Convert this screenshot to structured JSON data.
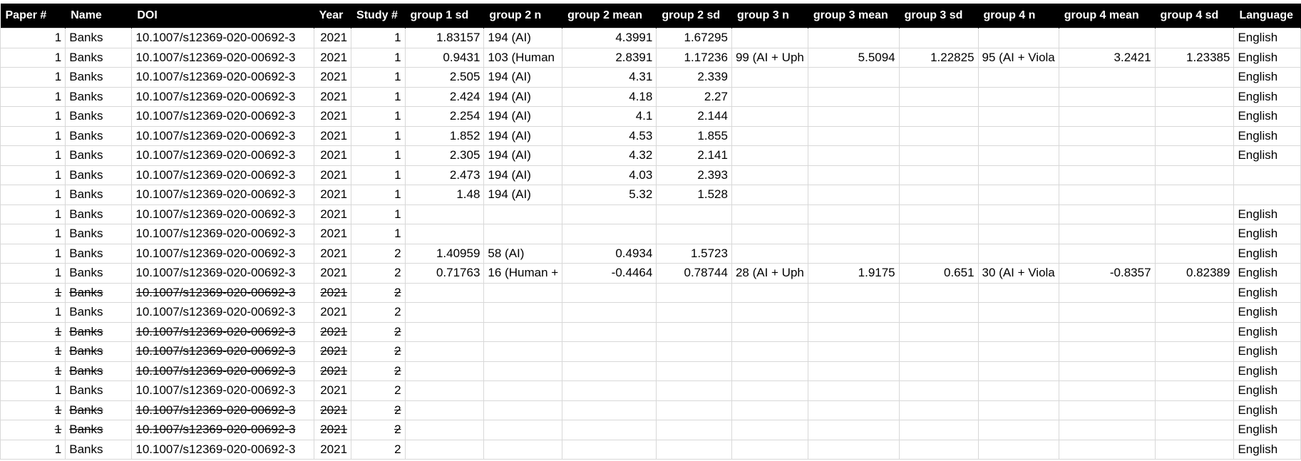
{
  "columns": [
    {
      "label": "Paper #",
      "key": "paper",
      "align": "num"
    },
    {
      "label": "Name",
      "key": "name",
      "align": "txt"
    },
    {
      "label": "DOI",
      "key": "doi",
      "align": "txt"
    },
    {
      "label": "Year",
      "key": "year",
      "align": "num"
    },
    {
      "label": "Study #",
      "key": "study",
      "align": "num"
    },
    {
      "label": "group 1 sd",
      "key": "g1sd",
      "align": "num"
    },
    {
      "label": "group 2 n",
      "key": "g2n",
      "align": "txt"
    },
    {
      "label": "group 2 mean",
      "key": "g2mean",
      "align": "num"
    },
    {
      "label": "group 2 sd",
      "key": "g2sd",
      "align": "num"
    },
    {
      "label": "group 3 n",
      "key": "g3n",
      "align": "txt"
    },
    {
      "label": "group 3 mean",
      "key": "g3mean",
      "align": "num"
    },
    {
      "label": "group 3 sd",
      "key": "g3sd",
      "align": "num"
    },
    {
      "label": "group 4 n",
      "key": "g4n",
      "align": "txt"
    },
    {
      "label": "group 4 mean",
      "key": "g4mean",
      "align": "num"
    },
    {
      "label": "group 4 sd",
      "key": "g4sd",
      "align": "num"
    },
    {
      "label": "Language",
      "key": "lang",
      "align": "txt"
    }
  ],
  "rows": [
    {
      "struck": false,
      "paper": "1",
      "name": "Banks",
      "doi": "10.1007/s12369-020-00692-3",
      "year": "2021",
      "study": "1",
      "g1sd": "1.83157",
      "g2n": "194 (AI)",
      "g2mean": "4.3991",
      "g2sd": "1.67295",
      "g3n": "",
      "g3mean": "",
      "g3sd": "",
      "g4n": "",
      "g4mean": "",
      "g4sd": "",
      "lang": "English"
    },
    {
      "struck": false,
      "paper": "1",
      "name": "Banks",
      "doi": "10.1007/s12369-020-00692-3",
      "year": "2021",
      "study": "1",
      "g1sd": "0.9431",
      "g2n": "103 (Human",
      "g2mean": "2.8391",
      "g2sd": "1.17236",
      "g3n": "99 (AI + Uph",
      "g3mean": "5.5094",
      "g3sd": "1.22825",
      "g4n": "95 (AI + Viola",
      "g4mean": "3.2421",
      "g4sd": "1.23385",
      "lang": "English"
    },
    {
      "struck": false,
      "paper": "1",
      "name": "Banks",
      "doi": "10.1007/s12369-020-00692-3",
      "year": "2021",
      "study": "1",
      "g1sd": "2.505",
      "g2n": "194 (AI)",
      "g2mean": "4.31",
      "g2sd": "2.339",
      "g3n": "",
      "g3mean": "",
      "g3sd": "",
      "g4n": "",
      "g4mean": "",
      "g4sd": "",
      "lang": "English"
    },
    {
      "struck": false,
      "paper": "1",
      "name": "Banks",
      "doi": "10.1007/s12369-020-00692-3",
      "year": "2021",
      "study": "1",
      "g1sd": "2.424",
      "g2n": "194 (AI)",
      "g2mean": "4.18",
      "g2sd": "2.27",
      "g3n": "",
      "g3mean": "",
      "g3sd": "",
      "g4n": "",
      "g4mean": "",
      "g4sd": "",
      "lang": "English"
    },
    {
      "struck": false,
      "paper": "1",
      "name": "Banks",
      "doi": "10.1007/s12369-020-00692-3",
      "year": "2021",
      "study": "1",
      "g1sd": "2.254",
      "g2n": "194 (AI)",
      "g2mean": "4.1",
      "g2sd": "2.144",
      "g3n": "",
      "g3mean": "",
      "g3sd": "",
      "g4n": "",
      "g4mean": "",
      "g4sd": "",
      "lang": "English"
    },
    {
      "struck": false,
      "paper": "1",
      "name": "Banks",
      "doi": "10.1007/s12369-020-00692-3",
      "year": "2021",
      "study": "1",
      "g1sd": "1.852",
      "g2n": "194 (AI)",
      "g2mean": "4.53",
      "g2sd": "1.855",
      "g3n": "",
      "g3mean": "",
      "g3sd": "",
      "g4n": "",
      "g4mean": "",
      "g4sd": "",
      "lang": "English"
    },
    {
      "struck": false,
      "paper": "1",
      "name": "Banks",
      "doi": "10.1007/s12369-020-00692-3",
      "year": "2021",
      "study": "1",
      "g1sd": "2.305",
      "g2n": "194 (AI)",
      "g2mean": "4.32",
      "g2sd": "2.141",
      "g3n": "",
      "g3mean": "",
      "g3sd": "",
      "g4n": "",
      "g4mean": "",
      "g4sd": "",
      "lang": "English"
    },
    {
      "struck": false,
      "paper": "1",
      "name": "Banks",
      "doi": "10.1007/s12369-020-00692-3",
      "year": "2021",
      "study": "1",
      "g1sd": "2.473",
      "g2n": "194 (AI)",
      "g2mean": "4.03",
      "g2sd": "2.393",
      "g3n": "",
      "g3mean": "",
      "g3sd": "",
      "g4n": "",
      "g4mean": "",
      "g4sd": "",
      "lang": ""
    },
    {
      "struck": false,
      "paper": "1",
      "name": "Banks",
      "doi": "10.1007/s12369-020-00692-3",
      "year": "2021",
      "study": "1",
      "g1sd": "1.48",
      "g2n": "194 (AI)",
      "g2mean": "5.32",
      "g2sd": "1.528",
      "g3n": "",
      "g3mean": "",
      "g3sd": "",
      "g4n": "",
      "g4mean": "",
      "g4sd": "",
      "lang": ""
    },
    {
      "struck": false,
      "paper": "1",
      "name": "Banks",
      "doi": "10.1007/s12369-020-00692-3",
      "year": "2021",
      "study": "1",
      "g1sd": "",
      "g2n": "",
      "g2mean": "",
      "g2sd": "",
      "g3n": "",
      "g3mean": "",
      "g3sd": "",
      "g4n": "",
      "g4mean": "",
      "g4sd": "",
      "lang": "English"
    },
    {
      "struck": false,
      "paper": "1",
      "name": "Banks",
      "doi": "10.1007/s12369-020-00692-3",
      "year": "2021",
      "study": "1",
      "g1sd": "",
      "g2n": "",
      "g2mean": "",
      "g2sd": "",
      "g3n": "",
      "g3mean": "",
      "g3sd": "",
      "g4n": "",
      "g4mean": "",
      "g4sd": "",
      "lang": "English"
    },
    {
      "struck": false,
      "paper": "1",
      "name": "Banks",
      "doi": "10.1007/s12369-020-00692-3",
      "year": "2021",
      "study": "2",
      "g1sd": "1.40959",
      "g2n": "58 (AI)",
      "g2mean": "0.4934",
      "g2sd": "1.5723",
      "g3n": "",
      "g3mean": "",
      "g3sd": "",
      "g4n": "",
      "g4mean": "",
      "g4sd": "",
      "lang": "English"
    },
    {
      "struck": false,
      "paper": "1",
      "name": "Banks",
      "doi": "10.1007/s12369-020-00692-3",
      "year": "2021",
      "study": "2",
      "g1sd": "0.71763",
      "g2n": "16 (Human +",
      "g2mean": "-0.4464",
      "g2sd": "0.78744",
      "g3n": "28 (AI + Uph",
      "g3mean": "1.9175",
      "g3sd": "0.651",
      "g4n": "30 (AI + Viola",
      "g4mean": "-0.8357",
      "g4sd": "0.82389",
      "lang": "English"
    },
    {
      "struck": true,
      "paper": "1",
      "name": "Banks",
      "doi": "10.1007/s12369-020-00692-3",
      "year": "2021",
      "study": "2",
      "g1sd": "",
      "g2n": "",
      "g2mean": "",
      "g2sd": "",
      "g3n": "",
      "g3mean": "",
      "g3sd": "",
      "g4n": "",
      "g4mean": "",
      "g4sd": "",
      "lang": "English"
    },
    {
      "struck": false,
      "paper": "1",
      "name": "Banks",
      "doi": "10.1007/s12369-020-00692-3",
      "year": "2021",
      "study": "2",
      "g1sd": "",
      "g2n": "",
      "g2mean": "",
      "g2sd": "",
      "g3n": "",
      "g3mean": "",
      "g3sd": "",
      "g4n": "",
      "g4mean": "",
      "g4sd": "",
      "lang": "English"
    },
    {
      "struck": true,
      "paper": "1",
      "name": "Banks",
      "doi": "10.1007/s12369-020-00692-3",
      "year": "2021",
      "study": "2",
      "g1sd": "",
      "g2n": "",
      "g2mean": "",
      "g2sd": "",
      "g3n": "",
      "g3mean": "",
      "g3sd": "",
      "g4n": "",
      "g4mean": "",
      "g4sd": "",
      "lang": "English"
    },
    {
      "struck": true,
      "paper": "1",
      "name": "Banks",
      "doi": "10.1007/s12369-020-00692-3",
      "year": "2021",
      "study": "2",
      "g1sd": "",
      "g2n": "",
      "g2mean": "",
      "g2sd": "",
      "g3n": "",
      "g3mean": "",
      "g3sd": "",
      "g4n": "",
      "g4mean": "",
      "g4sd": "",
      "lang": "English"
    },
    {
      "struck": true,
      "paper": "1",
      "name": "Banks",
      "doi": "10.1007/s12369-020-00692-3",
      "year": "2021",
      "study": "2",
      "g1sd": "",
      "g2n": "",
      "g2mean": "",
      "g2sd": "",
      "g3n": "",
      "g3mean": "",
      "g3sd": "",
      "g4n": "",
      "g4mean": "",
      "g4sd": "",
      "lang": "English"
    },
    {
      "struck": false,
      "paper": "1",
      "name": "Banks",
      "doi": "10.1007/s12369-020-00692-3",
      "year": "2021",
      "study": "2",
      "g1sd": "",
      "g2n": "",
      "g2mean": "",
      "g2sd": "",
      "g3n": "",
      "g3mean": "",
      "g3sd": "",
      "g4n": "",
      "g4mean": "",
      "g4sd": "",
      "lang": "English"
    },
    {
      "struck": true,
      "paper": "1",
      "name": "Banks",
      "doi": "10.1007/s12369-020-00692-3",
      "year": "2021",
      "study": "2",
      "g1sd": "",
      "g2n": "",
      "g2mean": "",
      "g2sd": "",
      "g3n": "",
      "g3mean": "",
      "g3sd": "",
      "g4n": "",
      "g4mean": "",
      "g4sd": "",
      "lang": "English"
    },
    {
      "struck": true,
      "paper": "1",
      "name": "Banks",
      "doi": "10.1007/s12369-020-00692-3",
      "year": "2021",
      "study": "2",
      "g1sd": "",
      "g2n": "",
      "g2mean": "",
      "g2sd": "",
      "g3n": "",
      "g3mean": "",
      "g3sd": "",
      "g4n": "",
      "g4mean": "",
      "g4sd": "",
      "lang": "English"
    },
    {
      "struck": false,
      "paper": "1",
      "name": "Banks",
      "doi": "10.1007/s12369-020-00692-3",
      "year": "2021",
      "study": "2",
      "g1sd": "",
      "g2n": "",
      "g2mean": "",
      "g2sd": "",
      "g3n": "",
      "g3mean": "",
      "g3sd": "",
      "g4n": "",
      "g4mean": "",
      "g4sd": "",
      "lang": "English"
    }
  ]
}
